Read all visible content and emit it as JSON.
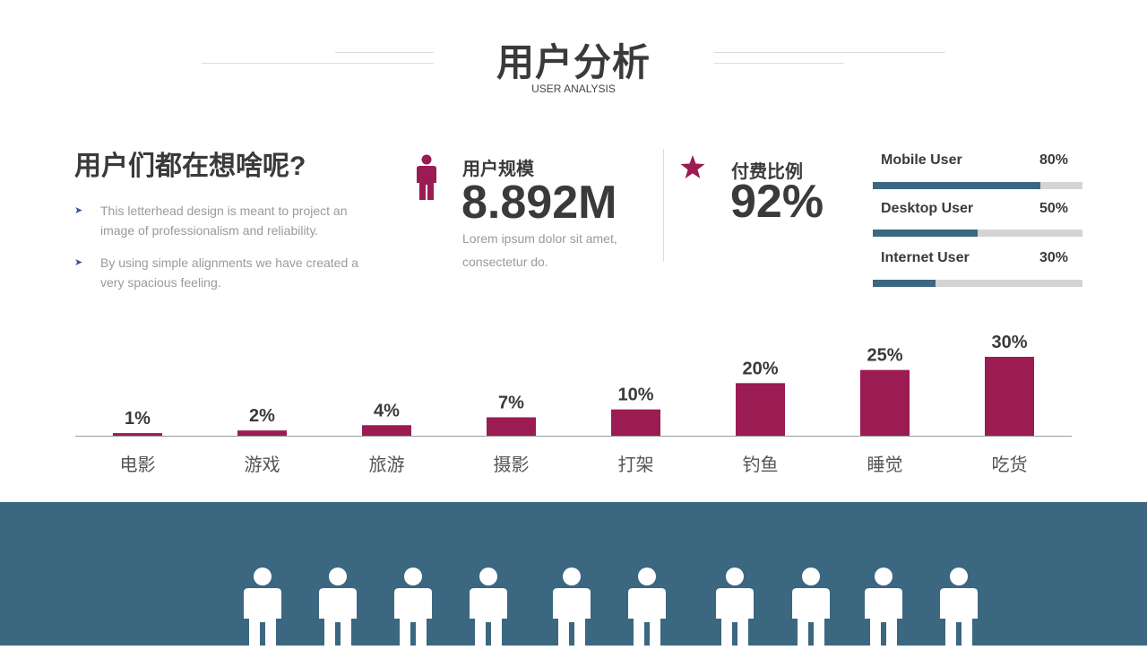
{
  "header": {
    "title": "用户分析",
    "subtitle": "USER ANALYSIS"
  },
  "left": {
    "heading": "用户们都在想啥呢?",
    "bullets": [
      "This letterhead design is meant to project an image of professionalism and reliability.",
      "By using simple alignments we have created a very spacious feeling."
    ]
  },
  "stats": {
    "users": {
      "icon": "person-icon",
      "label": "用户规模",
      "value": "8.892M",
      "desc": "Lorem ipsum dolor sit amet, consectetur do."
    },
    "paid": {
      "icon": "star-icon",
      "label": "付费比例",
      "value": "92%"
    }
  },
  "progress": [
    {
      "label": "Mobile User",
      "pct_text": "80%",
      "value": 0.8
    },
    {
      "label": "Desktop User",
      "pct_text": "50%",
      "value": 0.5
    },
    {
      "label": "Internet User",
      "pct_text": "30%",
      "value": 0.3
    }
  ],
  "colors": {
    "accent": "#9b1b53",
    "brand": "#3b6780",
    "track": "#d4d4d4",
    "text": "#3a3a3a",
    "muted": "#9a9a9a"
  },
  "chart_data": {
    "type": "bar",
    "categories": [
      "电影",
      "游戏",
      "旅游",
      "摄影",
      "打架",
      "钓鱼",
      "睡觉",
      "吃货"
    ],
    "values": [
      1,
      2,
      4,
      7,
      10,
      20,
      25,
      30
    ],
    "value_labels": [
      "1%",
      "2%",
      "4%",
      "7%",
      "10%",
      "20%",
      "25%",
      "30%"
    ],
    "ylim": [
      0,
      30
    ],
    "grid": false,
    "bar_color": "#9b1b53"
  },
  "footer": {
    "figure_icon": "person-icon",
    "figure_count": 10
  }
}
